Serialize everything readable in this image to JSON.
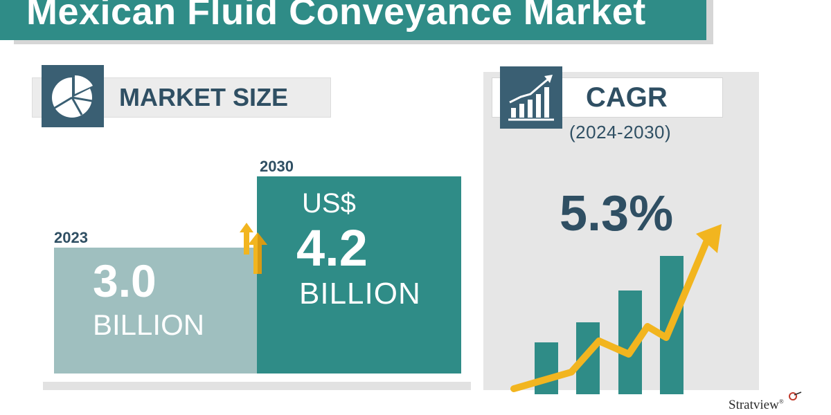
{
  "header": {
    "title": "Mexican Fluid Conveyance Market"
  },
  "market_size": {
    "label": "MARKET SIZE",
    "icon": "pie-chart-icon",
    "arrow_icon": "up-arrows-icon",
    "bars": [
      {
        "year": "2023",
        "currency": "",
        "value": "3.0",
        "unit": "BILLION"
      },
      {
        "year": "2030",
        "currency": "US$",
        "value": "4.2",
        "unit": "BILLION"
      }
    ]
  },
  "cagr": {
    "label": "CAGR",
    "period": "(2024-2030)",
    "value": "5.3%",
    "icon": "growth-chart-icon",
    "graphic_icon": "rising-bars-arrow-icon"
  },
  "brand": {
    "name": "Stratview",
    "mark": "®"
  },
  "colors": {
    "teal": "#2f8c87",
    "light_teal": "#9fbfbf",
    "navy": "#3a5f73",
    "text_dark": "#2f4f63",
    "accent_yellow": "#f2b51f"
  }
}
